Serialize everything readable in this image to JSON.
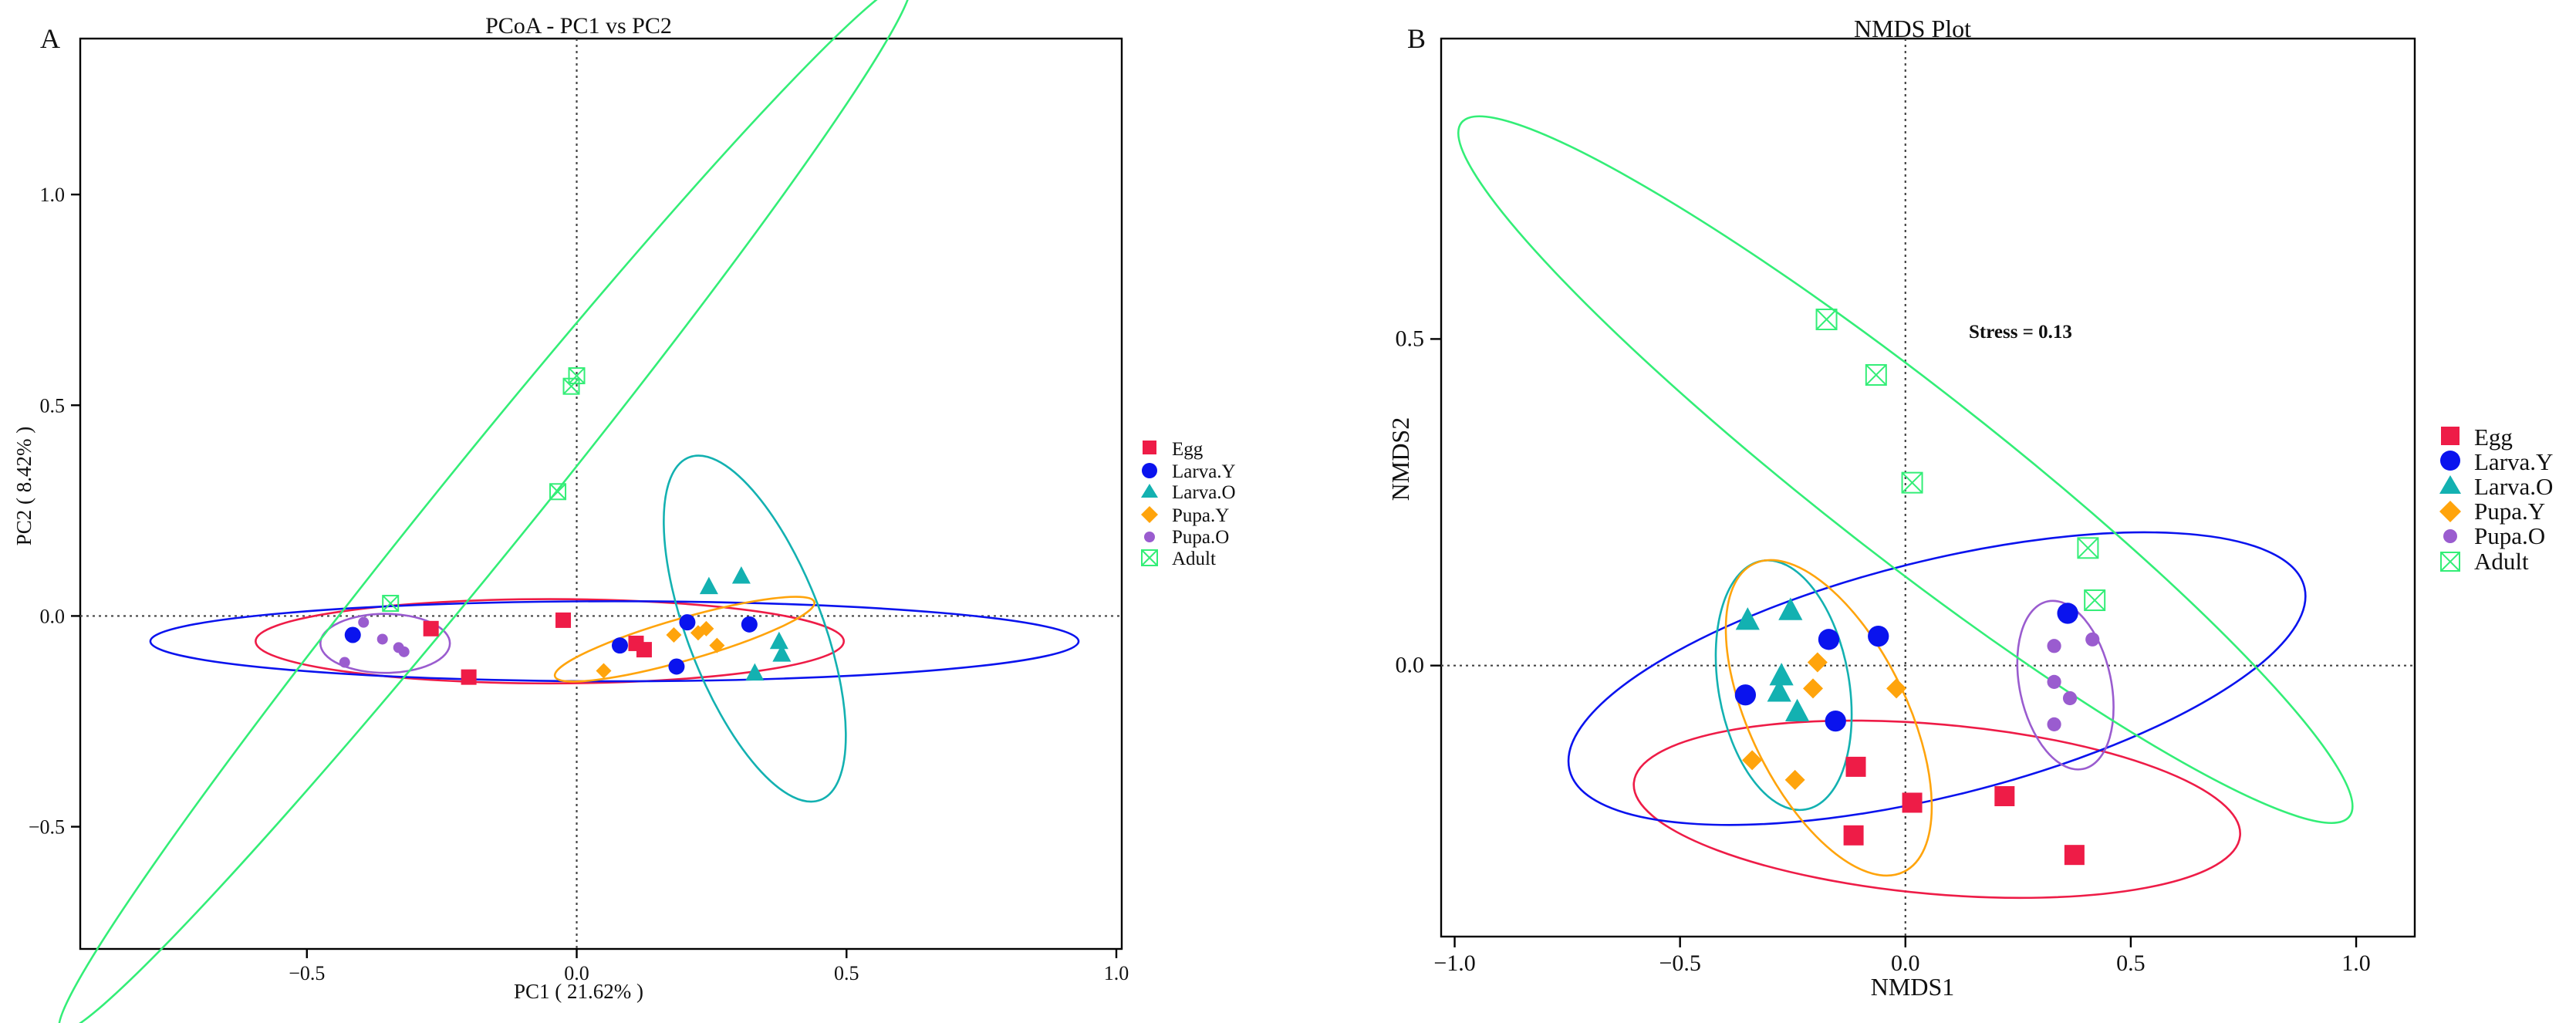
{
  "chart_data": [
    {
      "panel_label": "A",
      "type": "scatter",
      "title": "PCoA - PC1 vs PC2",
      "xlabel": "PC1 ( 21.62% )",
      "ylabel": "PC2 ( 8.42% )",
      "xlim": [
        -0.92,
        1.01
      ],
      "ylim": [
        -0.79,
        1.37
      ],
      "xticks": [
        -0.5,
        0.0,
        0.5,
        1.0
      ],
      "xtick_labels": [
        "−0.5",
        "0.0",
        "0.5",
        "1.0"
      ],
      "yticks": [
        -0.5,
        0.0,
        0.5,
        1.0
      ],
      "ytick_labels": [
        "−0.5",
        "0.0",
        "0.5",
        "1.0"
      ],
      "zero_lines": true,
      "legend_position": "right",
      "series": [
        {
          "name": "Egg",
          "color": "#ee1c47",
          "marker": "square",
          "points": [
            [
              -0.27,
              -0.03
            ],
            [
              -0.2,
              -0.145
            ],
            [
              -0.025,
              -0.01
            ],
            [
              0.11,
              -0.065
            ],
            [
              0.125,
              -0.08
            ]
          ],
          "ellipse": {
            "cx": -0.05,
            "cy": -0.06,
            "rx": 0.545,
            "ry": 0.1,
            "angle": 0
          }
        },
        {
          "name": "Larva.Y",
          "color": "#0a13ee",
          "marker": "circle",
          "points": [
            [
              -0.415,
              -0.045
            ],
            [
              0.08,
              -0.07
            ],
            [
              0.185,
              -0.12
            ],
            [
              0.205,
              -0.015
            ],
            [
              0.32,
              -0.02
            ]
          ],
          "ellipse": {
            "cx": 0.07,
            "cy": -0.06,
            "rx": 0.86,
            "ry": 0.095,
            "angle": 0
          }
        },
        {
          "name": "Larva.O",
          "color": "#13b1b1",
          "marker": "triangle",
          "points": [
            [
              0.245,
              0.07
            ],
            [
              0.305,
              0.095
            ],
            [
              0.33,
              -0.135
            ],
            [
              0.375,
              -0.06
            ],
            [
              0.38,
              -0.09
            ]
          ],
          "ellipse": {
            "cx": 0.33,
            "cy": -0.03,
            "rx": 0.34,
            "ry": 0.16,
            "angle": -69
          }
        },
        {
          "name": "Pupa.Y",
          "color": "#ffa40c",
          "marker": "diamond",
          "points": [
            [
              0.05,
              -0.13
            ],
            [
              0.18,
              -0.045
            ],
            [
              0.225,
              -0.04
            ],
            [
              0.24,
              -0.03
            ],
            [
              0.26,
              -0.07
            ]
          ],
          "ellipse": {
            "cx": 0.2,
            "cy": -0.055,
            "rx": 0.25,
            "ry": 0.05,
            "angle": 16
          }
        },
        {
          "name": "Pupa.O",
          "color": "#9a5ccf",
          "marker": "dot",
          "points": [
            [
              -0.43,
              -0.11
            ],
            [
              -0.395,
              -0.015
            ],
            [
              -0.36,
              -0.055
            ],
            [
              -0.33,
              -0.075
            ],
            [
              -0.32,
              -0.085
            ]
          ],
          "ellipse": {
            "cx": -0.355,
            "cy": -0.065,
            "rx": 0.12,
            "ry": 0.07,
            "angle": 0
          }
        },
        {
          "name": "Adult",
          "color": "#33ee77",
          "marker": "xbox",
          "points": [
            [
              -0.035,
              0.295
            ],
            [
              -0.01,
              0.545
            ],
            [
              0.0,
              0.57
            ],
            [
              -0.345,
              0.03
            ]
          ],
          "ellipse": {
            "cx": -0.17,
            "cy": 0.26,
            "rx": 1.25,
            "ry": 0.11,
            "angle": 51
          }
        }
      ]
    },
    {
      "panel_label": "B",
      "type": "scatter",
      "title": "NMDS Plot",
      "xlabel": "NMDS1",
      "ylabel": "NMDS2",
      "annotation": "Stress = 0.13",
      "xlim": [
        -1.03,
        1.13
      ],
      "ylim": [
        -0.415,
        0.96
      ],
      "xticks": [
        -1.0,
        -0.5,
        0.0,
        0.5,
        1.0
      ],
      "xtick_labels": [
        "−1.0",
        "−0.5",
        "0.0",
        "0.5",
        "1.0"
      ],
      "yticks": [
        0.0,
        0.5
      ],
      "ytick_labels": [
        "0.0",
        "0.5"
      ],
      "zero_lines": true,
      "legend_position": "right",
      "series": [
        {
          "name": "Egg",
          "color": "#ee1c47",
          "marker": "square",
          "points": [
            [
              -0.11,
              -0.155
            ],
            [
              -0.115,
              -0.26
            ],
            [
              0.015,
              -0.21
            ],
            [
              0.22,
              -0.2
            ],
            [
              0.375,
              -0.29
            ]
          ],
          "ellipse": {
            "cx": 0.07,
            "cy": -0.22,
            "rx": 0.675,
            "ry": 0.13,
            "angle": -5
          }
        },
        {
          "name": "Larva.Y",
          "color": "#0a13ee",
          "marker": "circle",
          "points": [
            [
              -0.355,
              -0.045
            ],
            [
              -0.17,
              0.04
            ],
            [
              -0.155,
              -0.085
            ],
            [
              -0.06,
              0.045
            ],
            [
              0.36,
              0.08
            ]
          ],
          "ellipse": {
            "cx": 0.07,
            "cy": -0.02,
            "rx": 0.84,
            "ry": 0.18,
            "angle": 14
          }
        },
        {
          "name": "Larva.O",
          "color": "#13b1b1",
          "marker": "triangle",
          "points": [
            [
              -0.35,
              0.07
            ],
            [
              -0.255,
              0.085
            ],
            [
              -0.275,
              -0.015
            ],
            [
              -0.28,
              -0.04
            ],
            [
              -0.24,
              -0.07
            ]
          ],
          "ellipse": {
            "cx": -0.27,
            "cy": -0.03,
            "rx": 0.28,
            "ry": 0.1,
            "angle": -80
          }
        },
        {
          "name": "Pupa.Y",
          "color": "#ffa40c",
          "marker": "diamond",
          "points": [
            [
              -0.34,
              -0.145
            ],
            [
              -0.245,
              -0.175
            ],
            [
              -0.195,
              0.005
            ],
            [
              -0.205,
              -0.035
            ],
            [
              -0.02,
              -0.035
            ]
          ],
          "ellipse": {
            "cx": -0.17,
            "cy": -0.08,
            "rx": 0.38,
            "ry": 0.12,
            "angle": -64
          }
        },
        {
          "name": "Pupa.O",
          "color": "#9a5ccf",
          "marker": "dot",
          "points": [
            [
              0.33,
              0.03
            ],
            [
              0.33,
              -0.025
            ],
            [
              0.33,
              -0.09
            ],
            [
              0.365,
              -0.05
            ],
            [
              0.415,
              0.04
            ]
          ],
          "ellipse": {
            "cx": 0.355,
            "cy": -0.03,
            "rx": 0.19,
            "ry": 0.07,
            "angle": -78
          }
        },
        {
          "name": "Adult",
          "color": "#33ee77",
          "marker": "xbox",
          "points": [
            [
              -0.175,
              0.53
            ],
            [
              -0.065,
              0.445
            ],
            [
              0.015,
              0.28
            ],
            [
              0.405,
              0.18
            ],
            [
              0.42,
              0.1
            ]
          ],
          "ellipse": {
            "cx": 0.0,
            "cy": 0.3,
            "rx": 1.25,
            "ry": 0.13,
            "angle": -38
          }
        }
      ]
    }
  ]
}
